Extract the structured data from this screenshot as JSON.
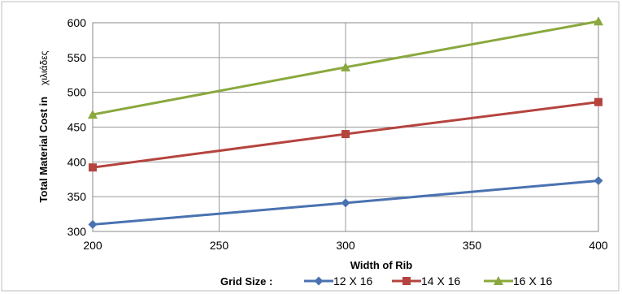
{
  "chart_data": {
    "type": "line",
    "x": [
      200,
      300,
      400
    ],
    "xlim": [
      200,
      400
    ],
    "ylim": [
      300,
      600
    ],
    "xticks": [
      "200",
      "250",
      "300",
      "350",
      "400"
    ],
    "yticks": [
      "300",
      "350",
      "400",
      "450",
      "500",
      "550",
      "600"
    ],
    "xlabel": "Width of Rib",
    "ylabel": "Total Material Cost in",
    "ylabel_unit": "χιλιάδες",
    "grid": true,
    "legend_title": "Grid Size :",
    "legend_position": "bottom",
    "series": [
      {
        "name": "12 X 16",
        "values": [
          310,
          341,
          373
        ],
        "color": "#4a72b0",
        "marker": "diamond"
      },
      {
        "name": "14 X 16",
        "values": [
          392,
          440,
          486
        ],
        "color": "#b5443f",
        "marker": "square"
      },
      {
        "name": "16 X 16",
        "values": [
          468,
          536,
          602
        ],
        "color": "#8aa83e",
        "marker": "triangle"
      }
    ]
  }
}
